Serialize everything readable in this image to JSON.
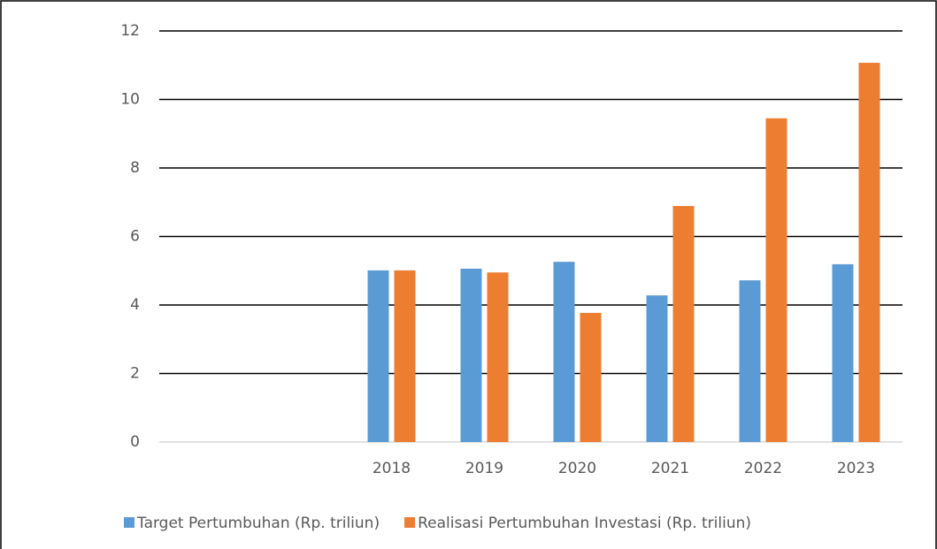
{
  "chart_data": {
    "type": "bar",
    "categories": [
      null,
      null,
      "2018",
      "2019",
      "2020",
      "2021",
      "2022",
      "2023"
    ],
    "series": [
      {
        "name": "Target Pertumbuhan (Rp. triliun)",
        "color": "#5b9bd5",
        "values": [
          null,
          null,
          5.01,
          5.06,
          5.26,
          4.28,
          4.72,
          5.19
        ]
      },
      {
        "name": "Realisasi Pertumbuhan Investasi (Rp. triliun)",
        "color": "#ed7d31",
        "values": [
          null,
          null,
          5.01,
          4.95,
          3.77,
          6.89,
          9.45,
          11.07
        ]
      }
    ],
    "ylim": [
      0,
      12
    ],
    "yticks": [
      0,
      2,
      4,
      6,
      8,
      10,
      12
    ],
    "grid": true,
    "legend": "bottom"
  }
}
